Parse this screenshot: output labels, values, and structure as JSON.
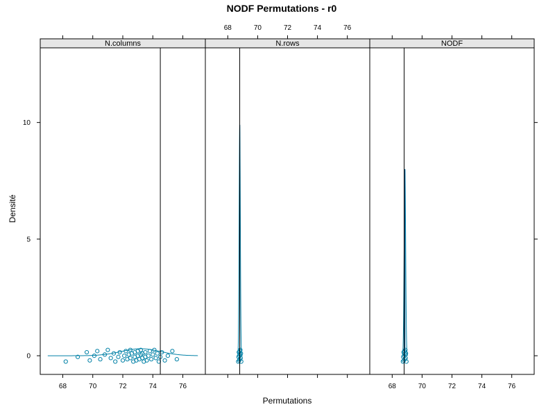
{
  "chart_data": {
    "type": "density",
    "title": "NODF Permutations - r0",
    "xlabel": "Permutations",
    "ylabel": "Densité",
    "xlim": [
      66.5,
      77.5
    ],
    "ylim": [
      -0.8,
      13.2
    ],
    "x_ticks": [
      "68",
      "70",
      "72",
      "74",
      "76"
    ],
    "y_ticks": [
      "0",
      "5",
      "10"
    ],
    "panels": [
      {
        "name": "N.columns",
        "observed": 74.5,
        "density_mean": 73.2,
        "density_sd": 1.3,
        "density_peak": 0.3,
        "density_range": [
          67.0,
          77.0
        ],
        "points": [
          68.2,
          69.0,
          69.6,
          69.8,
          70.1,
          70.3,
          70.5,
          70.8,
          71.0,
          71.2,
          71.4,
          71.5,
          71.7,
          71.8,
          72.0,
          72.1,
          72.2,
          72.3,
          72.4,
          72.5,
          72.5,
          72.6,
          72.7,
          72.8,
          72.8,
          72.9,
          73.0,
          73.0,
          73.1,
          73.2,
          73.2,
          73.3,
          73.3,
          73.4,
          73.5,
          73.5,
          73.6,
          73.7,
          73.8,
          73.9,
          74.0,
          74.1,
          74.2,
          74.3,
          74.4,
          74.5,
          74.6,
          74.8,
          75.0,
          75.3,
          75.6
        ]
      },
      {
        "name": "N.rows",
        "observed": 68.8,
        "density_mean": 68.8,
        "density_sd": 0.04,
        "density_peak": 9.9,
        "density_range": [
          68.6,
          69.0
        ],
        "points": [
          68.7,
          68.72,
          68.74,
          68.76,
          68.78,
          68.8,
          68.8,
          68.82,
          68.84,
          68.86,
          68.88,
          68.9
        ]
      },
      {
        "name": "NODF",
        "observed": 68.8,
        "density_mean": 68.85,
        "density_sd": 0.05,
        "density_peak": 8.0,
        "density_range": [
          68.65,
          69.05
        ],
        "points": [
          68.72,
          68.74,
          68.76,
          68.78,
          68.8,
          68.82,
          68.84,
          68.86,
          68.88,
          68.9,
          68.92,
          68.95
        ]
      }
    ]
  }
}
